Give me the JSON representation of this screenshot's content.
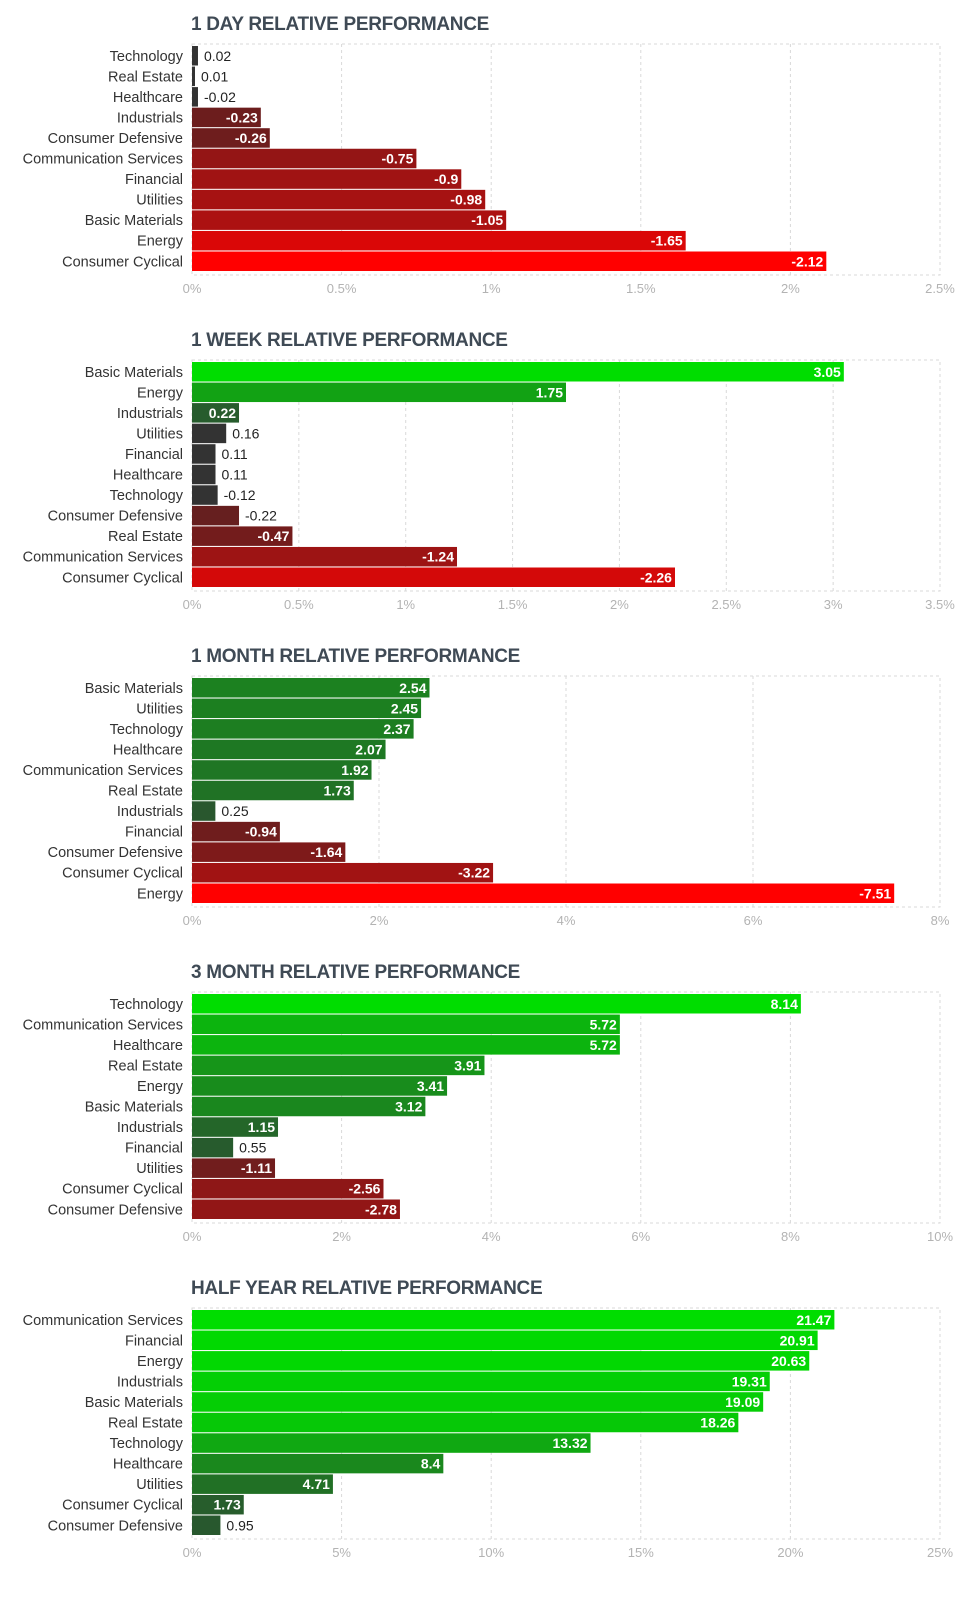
{
  "colors": {
    "dark": "#333333",
    "negative_strong": "#ff0000",
    "negative_weak": "#5a2121",
    "positive_strong": "#00dd00",
    "positive_weak": "#2a5230",
    "grid": "#d9d9d9",
    "axis_text": "#b3b3b3",
    "title_text": "#3f4a55"
  },
  "chart_data": [
    {
      "type": "bar",
      "orientation": "horizontal",
      "title": "1 DAY RELATIVE PERFORMANCE",
      "categories": [
        "Technology",
        "Real Estate",
        "Healthcare",
        "Industrials",
        "Consumer Defensive",
        "Communication Services",
        "Financial",
        "Utilities",
        "Basic Materials",
        "Energy",
        "Consumer Cyclical"
      ],
      "values": [
        0.02,
        0.01,
        -0.02,
        -0.23,
        -0.26,
        -0.75,
        -0.9,
        -0.98,
        -1.05,
        -1.65,
        -2.12
      ],
      "value_labels": [
        "0.02",
        "0.01",
        "-0.02",
        "-0.23",
        "-0.26",
        "-0.75",
        "-0.9",
        "-0.98",
        "-1.05",
        "-1.65",
        "-2.12"
      ],
      "xlim": [
        0,
        2.5
      ],
      "ticks": [
        0,
        0.5,
        1,
        1.5,
        2,
        2.5
      ],
      "tick_labels": [
        "0%",
        "0.5%",
        "1%",
        "1.5%",
        "2%",
        "2.5%"
      ],
      "scale_max_abs": 2.12
    },
    {
      "type": "bar",
      "orientation": "horizontal",
      "title": "1 WEEK RELATIVE PERFORMANCE",
      "categories": [
        "Basic Materials",
        "Energy",
        "Industrials",
        "Utilities",
        "Financial",
        "Healthcare",
        "Technology",
        "Consumer Defensive",
        "Real Estate",
        "Communication Services",
        "Consumer Cyclical"
      ],
      "values": [
        3.05,
        1.75,
        0.22,
        0.16,
        0.11,
        0.11,
        -0.12,
        -0.22,
        -0.47,
        -1.24,
        -2.26
      ],
      "value_labels": [
        "3.05",
        "1.75",
        "0.22",
        "0.16",
        "0.11",
        "0.11",
        "-0.12",
        "-0.22",
        "-0.47",
        "-1.24",
        "-2.26"
      ],
      "xlim": [
        0,
        3.5
      ],
      "ticks": [
        0,
        0.5,
        1,
        1.5,
        2,
        2.5,
        3,
        3.5
      ],
      "tick_labels": [
        "0%",
        "0.5%",
        "1%",
        "1.5%",
        "2%",
        "2.5%",
        "3%",
        "3.5%"
      ],
      "scale_max_abs": 3.05
    },
    {
      "type": "bar",
      "orientation": "horizontal",
      "title": "1 MONTH RELATIVE PERFORMANCE",
      "categories": [
        "Basic Materials",
        "Utilities",
        "Technology",
        "Healthcare",
        "Communication Services",
        "Real Estate",
        "Industrials",
        "Financial",
        "Consumer Defensive",
        "Consumer Cyclical",
        "Energy"
      ],
      "values": [
        2.54,
        2.45,
        2.37,
        2.07,
        1.92,
        1.73,
        0.25,
        -0.94,
        -1.64,
        -3.22,
        -7.51
      ],
      "value_labels": [
        "2.54",
        "2.45",
        "2.37",
        "2.07",
        "1.92",
        "1.73",
        "0.25",
        "-0.94",
        "-1.64",
        "-3.22",
        "-7.51"
      ],
      "xlim": [
        0,
        8
      ],
      "ticks": [
        0,
        2,
        4,
        6,
        8
      ],
      "tick_labels": [
        "0%",
        "2%",
        "4%",
        "6%",
        "8%"
      ],
      "scale_max_abs": 7.51
    },
    {
      "type": "bar",
      "orientation": "horizontal",
      "title": "3 MONTH RELATIVE PERFORMANCE",
      "categories": [
        "Technology",
        "Communication Services",
        "Healthcare",
        "Real Estate",
        "Energy",
        "Basic Materials",
        "Industrials",
        "Financial",
        "Utilities",
        "Consumer Cyclical",
        "Consumer Defensive"
      ],
      "values": [
        8.14,
        5.72,
        5.72,
        3.91,
        3.41,
        3.12,
        1.15,
        0.55,
        -1.11,
        -2.56,
        -2.78
      ],
      "value_labels": [
        "8.14",
        "5.72",
        "5.72",
        "3.91",
        "3.41",
        "3.12",
        "1.15",
        "0.55",
        "-1.11",
        "-2.56",
        "-2.78"
      ],
      "xlim": [
        0,
        10
      ],
      "ticks": [
        0,
        2,
        4,
        6,
        8,
        10
      ],
      "tick_labels": [
        "0%",
        "2%",
        "4%",
        "6%",
        "8%",
        "10%"
      ],
      "scale_max_abs": 8.14
    },
    {
      "type": "bar",
      "orientation": "horizontal",
      "title": "HALF YEAR RELATIVE PERFORMANCE",
      "categories": [
        "Communication Services",
        "Financial",
        "Energy",
        "Industrials",
        "Basic Materials",
        "Real Estate",
        "Technology",
        "Healthcare",
        "Utilities",
        "Consumer Cyclical",
        "Consumer Defensive"
      ],
      "values": [
        21.47,
        20.91,
        20.63,
        19.31,
        19.09,
        18.26,
        13.32,
        8.4,
        4.71,
        1.73,
        0.95
      ],
      "value_labels": [
        "21.47",
        "20.91",
        "20.63",
        "19.31",
        "19.09",
        "18.26",
        "13.32",
        "8.4",
        "4.71",
        "1.73",
        "0.95"
      ],
      "xlim": [
        0,
        25
      ],
      "ticks": [
        0,
        5,
        10,
        15,
        20,
        25
      ],
      "tick_labels": [
        "0%",
        "5%",
        "10%",
        "15%",
        "20%",
        "25%"
      ],
      "scale_max_abs": 21.47
    }
  ]
}
